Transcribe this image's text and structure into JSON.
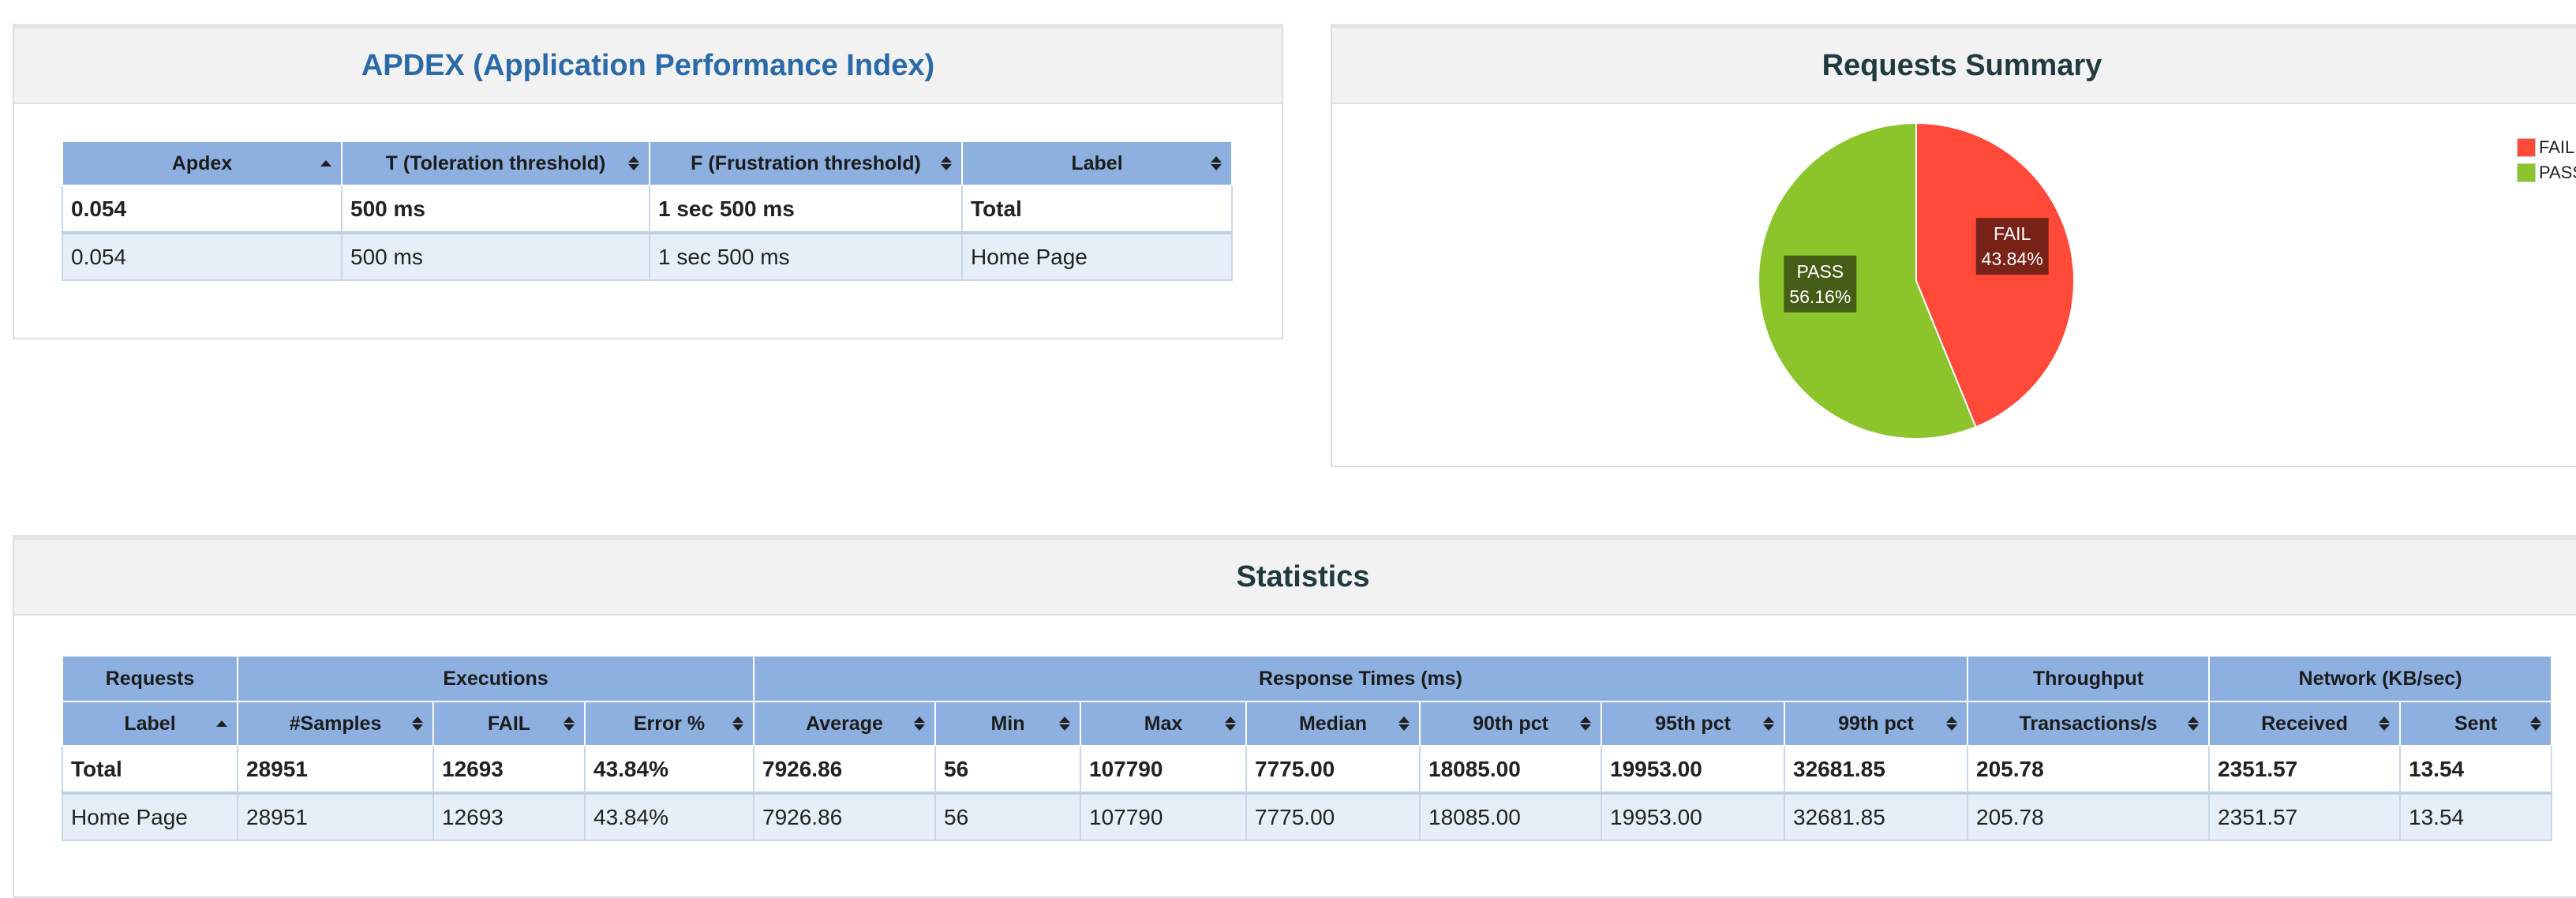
{
  "apdex": {
    "title": "APDEX (Application Performance Index)",
    "headers": [
      "Apdex",
      "T (Toleration threshold)",
      "F (Frustration threshold)",
      "Label"
    ],
    "total": [
      "0.054",
      "500 ms",
      "1 sec 500 ms",
      "Total"
    ],
    "rows": [
      [
        "0.054",
        "500 ms",
        "1 sec 500 ms",
        "Home Page"
      ]
    ]
  },
  "summary": {
    "title": "Requests Summary",
    "legend": [
      {
        "label": "FAIL",
        "color": "#ff4a3a"
      },
      {
        "label": "PASS",
        "color": "#8cc42b"
      }
    ],
    "slice_labels": [
      {
        "name": "FAIL",
        "pct": "43.84%"
      },
      {
        "name": "PASS",
        "pct": "56.16%"
      }
    ]
  },
  "chart_data": {
    "type": "pie",
    "categories": [
      "FAIL",
      "PASS"
    ],
    "values": [
      43.84,
      56.16
    ],
    "colors": [
      "#ff4a3a",
      "#8cc42b"
    ],
    "title": "Requests Summary",
    "legend_position": "top-right"
  },
  "statistics": {
    "title": "Statistics",
    "groups": [
      {
        "label": "Requests",
        "span": 1
      },
      {
        "label": "Executions",
        "span": 3
      },
      {
        "label": "Response Times (ms)",
        "span": 7
      },
      {
        "label": "Throughput",
        "span": 1
      },
      {
        "label": "Network (KB/sec)",
        "span": 2
      }
    ],
    "headers": [
      "Label",
      "#Samples",
      "FAIL",
      "Error %",
      "Average",
      "Min",
      "Max",
      "Median",
      "90th pct",
      "95th pct",
      "99th pct",
      "Transactions/s",
      "Received",
      "Sent"
    ],
    "total": [
      "Total",
      "28951",
      "12693",
      "43.84%",
      "7926.86",
      "56",
      "107790",
      "7775.00",
      "18085.00",
      "19953.00",
      "32681.85",
      "205.78",
      "2351.57",
      "13.54"
    ],
    "rows": [
      [
        "Home Page",
        "28951",
        "12693",
        "43.84%",
        "7926.86",
        "56",
        "107790",
        "7775.00",
        "18085.00",
        "19953.00",
        "32681.85",
        "205.78",
        "2351.57",
        "13.54"
      ]
    ]
  }
}
